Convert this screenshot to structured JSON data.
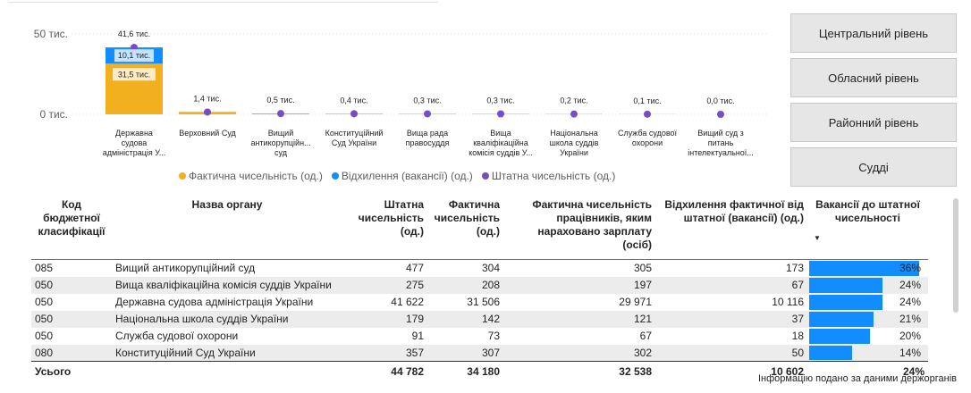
{
  "chart_data": {
    "type": "bar",
    "y_ticks": [
      "50 тис.",
      "0 тис."
    ],
    "ylim": [
      0,
      50000
    ],
    "categories": [
      {
        "label_lines": [
          "Державна",
          "судова",
          "адміністрація У..."
        ],
        "total_label": "41,6 тис."
      },
      {
        "label_lines": [
          "Верховний Суд"
        ],
        "total_label": "1,4 тис."
      },
      {
        "label_lines": [
          "Вищий",
          "антикорупційн...",
          "суд"
        ],
        "total_label": "0,5 тис."
      },
      {
        "label_lines": [
          "Конституційний",
          "Суд України"
        ],
        "total_label": "0,4 тис."
      },
      {
        "label_lines": [
          "Вища рада",
          "правосуддя"
        ],
        "total_label": "0,3 тис."
      },
      {
        "label_lines": [
          "Вища",
          "кваліфікаційна",
          "комісія суддів У..."
        ],
        "total_label": "0,3 тис."
      },
      {
        "label_lines": [
          "Національна",
          "школа суддів",
          "України"
        ],
        "total_label": "0,2 тис."
      },
      {
        "label_lines": [
          "Служба судової",
          "охорони"
        ],
        "total_label": "0,1 тис."
      },
      {
        "label_lines": [
          "Вищий суд з",
          "питань",
          "інтелектуальної..."
        ],
        "total_label": "0,0 тис."
      }
    ],
    "series": [
      {
        "name": "Фактична чисельність (од.)",
        "color": "#f2b01e",
        "values": [
          31506,
          1200,
          304,
          307,
          260,
          208,
          142,
          73,
          0
        ],
        "value_labels": [
          "31,5 тис.",
          "",
          "",
          "",
          "",
          "",
          "",
          "",
          ""
        ]
      },
      {
        "name": "Відхилення (вакансії) (од.)",
        "color": "#118dff",
        "values": [
          10116,
          200,
          173,
          50,
          40,
          67,
          37,
          18,
          0
        ],
        "value_labels": [
          "10,1 тис.",
          "",
          "",
          "",
          "",
          "",
          "",
          "",
          ""
        ]
      },
      {
        "name": "Штатна чисельність (од.)",
        "color": "#744ec2",
        "values": [
          41622,
          1400,
          477,
          357,
          300,
          275,
          179,
          91,
          0
        ]
      }
    ],
    "legend_position": "bottom"
  },
  "legend": {
    "items": [
      {
        "label": "Фактична чисельність (од.)",
        "color": "#f2b01e"
      },
      {
        "label": "Відхилення (вакансії) (од.)",
        "color": "#118dff"
      },
      {
        "label": "Штатна чисельність (од.)",
        "color": "#744ec2"
      }
    ]
  },
  "buttons": {
    "central": "Центральний рівень",
    "regional": "Обласний рівень",
    "district": "Районний рівень",
    "judges": "Судді"
  },
  "table": {
    "headers": {
      "code": "Код бюджетної класифікації",
      "name": "Назва органу",
      "staff": "Штатна чисельність (од.)",
      "actual": "Фактична чисельність (од.)",
      "paid": "Фактична чисельність працівників, яким нараховано зарплату (осіб)",
      "deviation": "Відхилення фактичної від штатної (вакансії) (од.)",
      "vacancy_pct": "Вакансії до штатної чисельності"
    },
    "rows": [
      {
        "code": "085",
        "name": "Вищий антикорупційний суд",
        "staff": "477",
        "actual": "304",
        "paid": "305",
        "deviation": "173",
        "pct": "36%",
        "pct_value": 36
      },
      {
        "code": "050",
        "name": "Вища кваліфікаційна комісія суддів України",
        "staff": "275",
        "actual": "208",
        "paid": "197",
        "deviation": "67",
        "pct": "24%",
        "pct_value": 24
      },
      {
        "code": "050",
        "name": "Державна судова адміністрація України",
        "staff": "41 622",
        "actual": "31 506",
        "paid": "29 971",
        "deviation": "10 116",
        "pct": "24%",
        "pct_value": 24
      },
      {
        "code": "050",
        "name": "Національна школа суддів України",
        "staff": "179",
        "actual": "142",
        "paid": "121",
        "deviation": "37",
        "pct": "21%",
        "pct_value": 21
      },
      {
        "code": "050",
        "name": "Служба судової охорони",
        "staff": "91",
        "actual": "73",
        "paid": "67",
        "deviation": "18",
        "pct": "20%",
        "pct_value": 20
      },
      {
        "code": "080",
        "name": "Конституційний Суд України",
        "staff": "357",
        "actual": "307",
        "paid": "302",
        "deviation": "50",
        "pct": "14%",
        "pct_value": 14
      }
    ],
    "total": {
      "label": "Усього",
      "staff": "44 782",
      "actual": "34 180",
      "paid": "32 538",
      "deviation": "10 602",
      "pct": "24%"
    }
  },
  "footnote": "Інформацію подано за даними держорганів"
}
